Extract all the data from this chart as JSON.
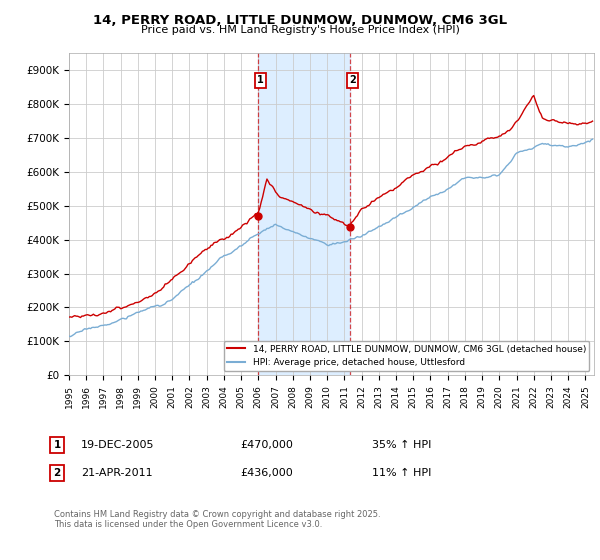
{
  "title": "14, PERRY ROAD, LITTLE DUNMOW, DUNMOW, CM6 3GL",
  "subtitle": "Price paid vs. HM Land Registry's House Price Index (HPI)",
  "ylim": [
    0,
    950000
  ],
  "yticks": [
    0,
    100000,
    200000,
    300000,
    400000,
    500000,
    600000,
    700000,
    800000,
    900000
  ],
  "ytick_labels": [
    "£0",
    "£100K",
    "£200K",
    "£300K",
    "£400K",
    "£500K",
    "£600K",
    "£700K",
    "£800K",
    "£900K"
  ],
  "xlim_start": 1995.0,
  "xlim_end": 2025.5,
  "purchase1_date": 2005.97,
  "purchase1_price": 470000,
  "purchase1_label": "1",
  "purchase2_date": 2011.31,
  "purchase2_price": 436000,
  "purchase2_label": "2",
  "legend_line1": "14, PERRY ROAD, LITTLE DUNMOW, DUNMOW, CM6 3GL (detached house)",
  "legend_line2": "HPI: Average price, detached house, Uttlesford",
  "footnote1_num": "1",
  "footnote1_date": "19-DEC-2005",
  "footnote1_price": "£470,000",
  "footnote1_hpi": "35% ↑ HPI",
  "footnote2_num": "2",
  "footnote2_date": "21-APR-2011",
  "footnote2_price": "£436,000",
  "footnote2_hpi": "11% ↑ HPI",
  "copyright": "Contains HM Land Registry data © Crown copyright and database right 2025.\nThis data is licensed under the Open Government Licence v3.0.",
  "line_red": "#cc0000",
  "line_blue": "#7aadd4",
  "shaded_color": "#ddeeff",
  "bg_color": "#ffffff",
  "grid_color": "#cccccc"
}
